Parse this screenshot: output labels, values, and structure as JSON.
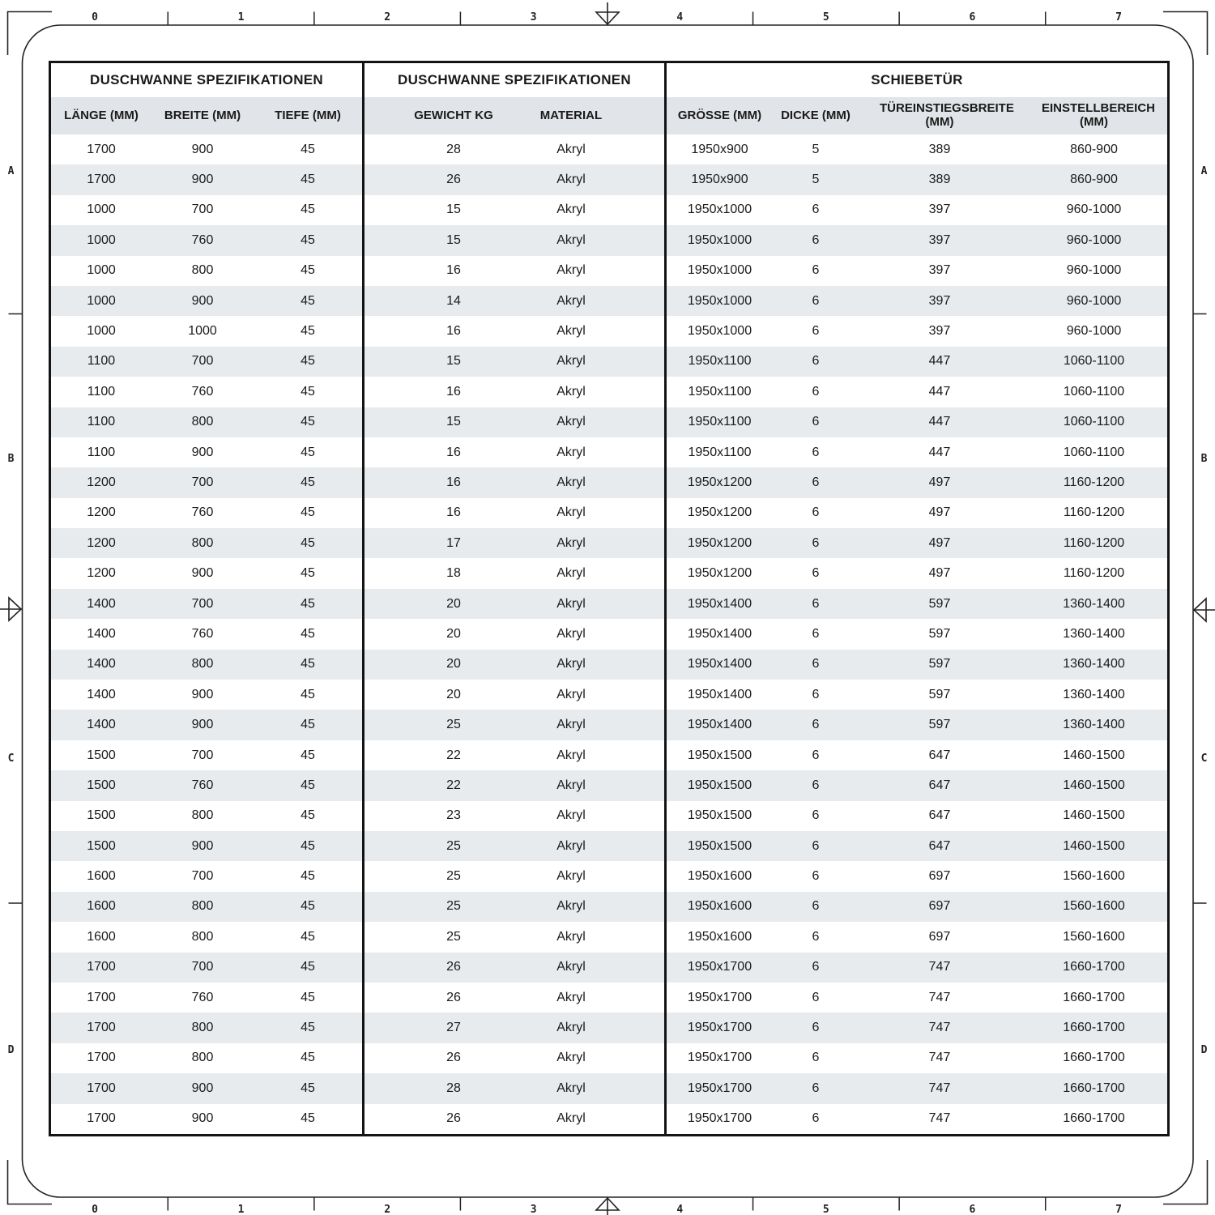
{
  "frame": {
    "top_ruler_numbers": [
      "0",
      "1",
      "2",
      "3",
      "4",
      "5",
      "6",
      "7"
    ],
    "bottom_ruler_numbers": [
      "0",
      "1",
      "2",
      "3",
      "4",
      "5",
      "6",
      "7"
    ],
    "left_row_letters": [
      "A",
      "B",
      "C",
      "D"
    ],
    "right_row_letters": [
      "A",
      "B",
      "C",
      "D"
    ]
  },
  "table": {
    "sections": [
      {
        "title": "DUSCHWANNE SPEZIFIKATIONEN",
        "columns": [
          "LÄNGE (MM)",
          "BREITE (MM)",
          "TIEFE (MM)"
        ]
      },
      {
        "title": "DUSCHWANNE SPEZIFIKATIONEN",
        "columns": [
          "GEWICHT KG",
          "MATERIAL"
        ]
      },
      {
        "title": "SCHIEBETÜR",
        "columns": [
          "GRÖSSE (MM)",
          "DICKE (MM)",
          "TÜREINSTIEGSBREITE (MM)",
          "EINSTELLBEREICH (MM)"
        ]
      }
    ],
    "rows": [
      [
        "1700",
        "900",
        "45",
        "28",
        "Akryl",
        "1950x900",
        "5",
        "389",
        "860-900"
      ],
      [
        "1700",
        "900",
        "45",
        "26",
        "Akryl",
        "1950x900",
        "5",
        "389",
        "860-900"
      ],
      [
        "1000",
        "700",
        "45",
        "15",
        "Akryl",
        "1950x1000",
        "6",
        "397",
        "960-1000"
      ],
      [
        "1000",
        "760",
        "45",
        "15",
        "Akryl",
        "1950x1000",
        "6",
        "397",
        "960-1000"
      ],
      [
        "1000",
        "800",
        "45",
        "16",
        "Akryl",
        "1950x1000",
        "6",
        "397",
        "960-1000"
      ],
      [
        "1000",
        "900",
        "45",
        "14",
        "Akryl",
        "1950x1000",
        "6",
        "397",
        "960-1000"
      ],
      [
        "1000",
        "1000",
        "45",
        "16",
        "Akryl",
        "1950x1000",
        "6",
        "397",
        "960-1000"
      ],
      [
        "1100",
        "700",
        "45",
        "15",
        "Akryl",
        "1950x1100",
        "6",
        "447",
        "1060-1100"
      ],
      [
        "1100",
        "760",
        "45",
        "16",
        "Akryl",
        "1950x1100",
        "6",
        "447",
        "1060-1100"
      ],
      [
        "1100",
        "800",
        "45",
        "15",
        "Akryl",
        "1950x1100",
        "6",
        "447",
        "1060-1100"
      ],
      [
        "1100",
        "900",
        "45",
        "16",
        "Akryl",
        "1950x1100",
        "6",
        "447",
        "1060-1100"
      ],
      [
        "1200",
        "700",
        "45",
        "16",
        "Akryl",
        "1950x1200",
        "6",
        "497",
        "1160-1200"
      ],
      [
        "1200",
        "760",
        "45",
        "16",
        "Akryl",
        "1950x1200",
        "6",
        "497",
        "1160-1200"
      ],
      [
        "1200",
        "800",
        "45",
        "17",
        "Akryl",
        "1950x1200",
        "6",
        "497",
        "1160-1200"
      ],
      [
        "1200",
        "900",
        "45",
        "18",
        "Akryl",
        "1950x1200",
        "6",
        "497",
        "1160-1200"
      ],
      [
        "1400",
        "700",
        "45",
        "20",
        "Akryl",
        "1950x1400",
        "6",
        "597",
        "1360-1400"
      ],
      [
        "1400",
        "760",
        "45",
        "20",
        "Akryl",
        "1950x1400",
        "6",
        "597",
        "1360-1400"
      ],
      [
        "1400",
        "800",
        "45",
        "20",
        "Akryl",
        "1950x1400",
        "6",
        "597",
        "1360-1400"
      ],
      [
        "1400",
        "900",
        "45",
        "20",
        "Akryl",
        "1950x1400",
        "6",
        "597",
        "1360-1400"
      ],
      [
        "1400",
        "900",
        "45",
        "25",
        "Akryl",
        "1950x1400",
        "6",
        "597",
        "1360-1400"
      ],
      [
        "1500",
        "700",
        "45",
        "22",
        "Akryl",
        "1950x1500",
        "6",
        "647",
        "1460-1500"
      ],
      [
        "1500",
        "760",
        "45",
        "22",
        "Akryl",
        "1950x1500",
        "6",
        "647",
        "1460-1500"
      ],
      [
        "1500",
        "800",
        "45",
        "23",
        "Akryl",
        "1950x1500",
        "6",
        "647",
        "1460-1500"
      ],
      [
        "1500",
        "900",
        "45",
        "25",
        "Akryl",
        "1950x1500",
        "6",
        "647",
        "1460-1500"
      ],
      [
        "1600",
        "700",
        "45",
        "25",
        "Akryl",
        "1950x1600",
        "6",
        "697",
        "1560-1600"
      ],
      [
        "1600",
        "800",
        "45",
        "25",
        "Akryl",
        "1950x1600",
        "6",
        "697",
        "1560-1600"
      ],
      [
        "1600",
        "800",
        "45",
        "25",
        "Akryl",
        "1950x1600",
        "6",
        "697",
        "1560-1600"
      ],
      [
        "1700",
        "700",
        "45",
        "26",
        "Akryl",
        "1950x1700",
        "6",
        "747",
        "1660-1700"
      ],
      [
        "1700",
        "760",
        "45",
        "26",
        "Akryl",
        "1950x1700",
        "6",
        "747",
        "1660-1700"
      ],
      [
        "1700",
        "800",
        "45",
        "27",
        "Akryl",
        "1950x1700",
        "6",
        "747",
        "1660-1700"
      ],
      [
        "1700",
        "800",
        "45",
        "26",
        "Akryl",
        "1950x1700",
        "6",
        "747",
        "1660-1700"
      ],
      [
        "1700",
        "900",
        "45",
        "28",
        "Akryl",
        "1950x1700",
        "6",
        "747",
        "1660-1700"
      ],
      [
        "1700",
        "900",
        "45",
        "26",
        "Akryl",
        "1950x1700",
        "6",
        "747",
        "1660-1700"
      ]
    ]
  },
  "colors": {
    "border": "#141414",
    "header_bg": "#e1e4e8",
    "stripe_bg": "#e8ebee",
    "text": "#1a1a1a"
  }
}
